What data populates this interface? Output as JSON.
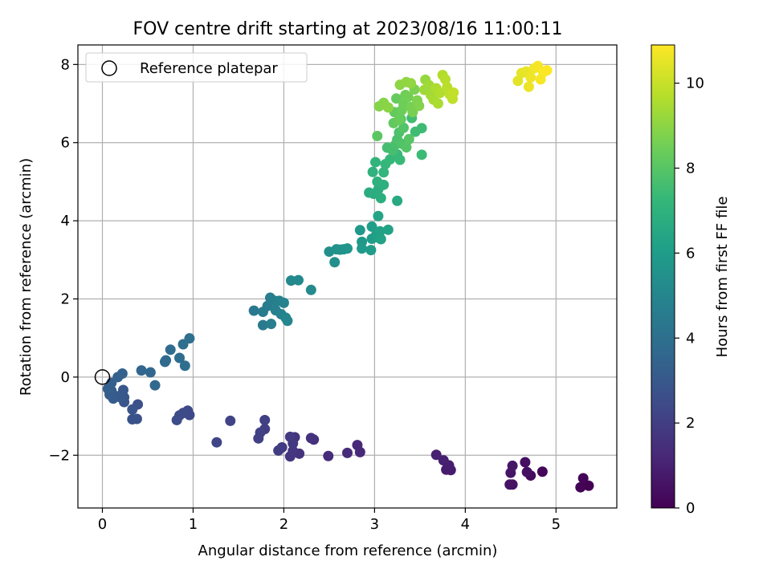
{
  "chart_data": {
    "type": "scatter",
    "title": "FOV centre drift starting at 2023/08/16 11:00:11",
    "xlabel": "Angular distance from reference (arcmin)",
    "ylabel": "Rotation from reference (arcmin)",
    "xlim": [
      -0.27,
      5.67
    ],
    "ylim": [
      -3.35,
      8.5
    ],
    "xticks": [
      0,
      1,
      2,
      3,
      4,
      5
    ],
    "xtick_labels": [
      "0",
      "1",
      "2",
      "3",
      "4",
      "5"
    ],
    "yticks": [
      -2,
      0,
      2,
      4,
      6,
      8
    ],
    "ytick_labels": [
      "−2",
      "0",
      "2",
      "4",
      "6",
      "8"
    ],
    "grid": true,
    "legend": {
      "position": "top-left",
      "entries": [
        "Reference platepar"
      ]
    },
    "reference_point": {
      "x": 0,
      "y": 0,
      "label": "Reference platepar"
    },
    "colorbar": {
      "label": "Hours from first FF file",
      "min": 0,
      "max": 10.9,
      "ticks": [
        0,
        2,
        4,
        6,
        8,
        10
      ],
      "tick_labels": [
        "0",
        "2",
        "4",
        "6",
        "8",
        "10"
      ],
      "colormap": "viridis"
    },
    "points": [
      [
        5.36,
        -2.78,
        0.0
      ],
      [
        5.27,
        -2.82,
        0.05
      ],
      [
        5.3,
        -2.59,
        0.1
      ],
      [
        4.85,
        -2.42,
        0.2
      ],
      [
        4.72,
        -2.52,
        0.3
      ],
      [
        4.66,
        -2.18,
        0.4
      ],
      [
        4.68,
        -2.43,
        0.45
      ],
      [
        4.52,
        -2.75,
        0.5
      ],
      [
        4.49,
        -2.75,
        0.55
      ],
      [
        4.5,
        -2.45,
        0.6
      ],
      [
        4.52,
        -2.27,
        0.65
      ],
      [
        3.84,
        -2.38,
        0.8
      ],
      [
        3.79,
        -2.37,
        0.85
      ],
      [
        3.82,
        -2.26,
        0.9
      ],
      [
        3.76,
        -2.13,
        0.95
      ],
      [
        3.68,
        -1.99,
        1.0
      ],
      [
        2.84,
        -1.92,
        1.2
      ],
      [
        2.81,
        -1.74,
        1.25
      ],
      [
        2.7,
        -1.94,
        1.3
      ],
      [
        2.49,
        -2.02,
        1.35
      ],
      [
        2.33,
        -1.6,
        1.5
      ],
      [
        2.3,
        -1.56,
        1.55
      ],
      [
        2.17,
        -1.96,
        1.6
      ],
      [
        2.12,
        -1.54,
        1.65
      ],
      [
        2.1,
        -1.89,
        1.7
      ],
      [
        2.07,
        -2.03,
        1.75
      ],
      [
        2.1,
        -1.7,
        1.8
      ],
      [
        2.07,
        -1.53,
        1.85
      ],
      [
        1.98,
        -1.8,
        1.9
      ],
      [
        1.94,
        -1.88,
        1.95
      ],
      [
        1.79,
        -1.33,
        2.0
      ],
      [
        1.79,
        -1.1,
        2.05
      ],
      [
        1.74,
        -1.42,
        2.1
      ],
      [
        1.72,
        -1.57,
        2.15
      ],
      [
        1.41,
        -1.12,
        2.2
      ],
      [
        1.26,
        -1.67,
        2.25
      ],
      [
        0.96,
        -0.97,
        2.35
      ],
      [
        0.94,
        -0.86,
        2.4
      ],
      [
        0.89,
        -0.92,
        2.45
      ],
      [
        0.85,
        -0.98,
        2.5
      ],
      [
        0.82,
        -1.1,
        2.55
      ],
      [
        0.39,
        -0.7,
        2.65
      ],
      [
        0.38,
        -1.07,
        2.7
      ],
      [
        0.33,
        -1.08,
        2.75
      ],
      [
        0.33,
        -0.83,
        2.8
      ],
      [
        0.24,
        -0.64,
        2.85
      ],
      [
        0.24,
        -0.52,
        2.9
      ],
      [
        0.23,
        -0.33,
        2.95
      ],
      [
        0.2,
        -0.52,
        3.0
      ],
      [
        0.16,
        -0.49,
        3.05
      ],
      [
        0.12,
        -0.55,
        3.1
      ],
      [
        0.1,
        -0.35,
        3.15
      ],
      [
        0.08,
        -0.45,
        3.2
      ],
      [
        0.06,
        -0.3,
        3.25
      ],
      [
        0.1,
        -0.15,
        3.3
      ],
      [
        0.17,
        0.0,
        3.35
      ],
      [
        0.22,
        0.09,
        3.4
      ],
      [
        0.43,
        0.17,
        3.55
      ],
      [
        0.53,
        0.12,
        3.6
      ],
      [
        0.58,
        -0.21,
        3.65
      ],
      [
        0.69,
        0.39,
        3.7
      ],
      [
        0.7,
        0.43,
        3.75
      ],
      [
        0.75,
        0.7,
        3.8
      ],
      [
        0.85,
        0.49,
        3.85
      ],
      [
        0.91,
        0.29,
        3.9
      ],
      [
        0.89,
        0.84,
        3.95
      ],
      [
        0.96,
        0.99,
        4.0
      ],
      [
        1.67,
        1.7,
        4.4
      ],
      [
        1.77,
        1.33,
        4.45
      ],
      [
        1.77,
        1.67,
        4.5
      ],
      [
        1.82,
        1.82,
        4.55
      ],
      [
        1.85,
        2.03,
        4.6
      ],
      [
        1.86,
        1.36,
        4.65
      ],
      [
        1.9,
        1.95,
        4.7
      ],
      [
        1.91,
        1.71,
        4.75
      ],
      [
        1.95,
        1.95,
        4.8
      ],
      [
        1.97,
        1.61,
        4.85
      ],
      [
        2.0,
        1.9,
        4.9
      ],
      [
        2.02,
        1.52,
        4.95
      ],
      [
        2.04,
        1.44,
        5.0
      ],
      [
        2.08,
        2.47,
        5.1
      ],
      [
        2.16,
        2.48,
        5.15
      ],
      [
        2.3,
        2.23,
        5.2
      ],
      [
        2.5,
        3.21,
        5.4
      ],
      [
        2.56,
        2.94,
        5.45
      ],
      [
        2.58,
        3.27,
        5.5
      ],
      [
        2.62,
        3.26,
        5.55
      ],
      [
        2.66,
        3.27,
        5.6
      ],
      [
        2.7,
        3.29,
        5.65
      ],
      [
        2.84,
        3.76,
        5.8
      ],
      [
        2.86,
        3.46,
        5.85
      ],
      [
        2.86,
        3.29,
        5.9
      ],
      [
        2.96,
        3.25,
        5.95
      ],
      [
        2.97,
        3.54,
        6.0
      ],
      [
        2.97,
        3.85,
        6.05
      ],
      [
        3.02,
        3.65,
        6.1
      ],
      [
        3.04,
        3.57,
        6.15
      ],
      [
        3.06,
        3.73,
        6.2
      ],
      [
        3.07,
        3.53,
        6.25
      ],
      [
        3.15,
        3.77,
        6.3
      ],
      [
        3.04,
        4.12,
        6.35
      ],
      [
        3.25,
        4.51,
        6.6
      ],
      [
        2.94,
        4.72,
        6.7
      ],
      [
        2.99,
        4.69,
        6.75
      ],
      [
        3.04,
        4.8,
        6.8
      ],
      [
        3.07,
        4.58,
        6.85
      ],
      [
        3.1,
        4.92,
        6.9
      ],
      [
        3.03,
        5.0,
        6.95
      ],
      [
        2.98,
        5.25,
        7.0
      ],
      [
        3.01,
        5.5,
        7.05
      ],
      [
        3.1,
        5.24,
        7.15
      ],
      [
        3.12,
        5.45,
        7.2
      ],
      [
        3.17,
        5.57,
        7.25
      ],
      [
        3.25,
        5.7,
        7.3
      ],
      [
        3.28,
        5.56,
        7.35
      ],
      [
        3.52,
        5.69,
        7.4
      ],
      [
        3.52,
        6.37,
        7.45
      ],
      [
        3.45,
        6.28,
        7.5
      ],
      [
        3.41,
        6.63,
        7.55
      ],
      [
        3.14,
        5.87,
        7.6
      ],
      [
        3.2,
        5.8,
        7.65
      ],
      [
        3.23,
        5.95,
        7.7
      ],
      [
        3.25,
        6.08,
        7.75
      ],
      [
        3.27,
        6.26,
        7.8
      ],
      [
        3.3,
        5.97,
        7.85
      ],
      [
        3.32,
        6.38,
        7.9
      ],
      [
        3.35,
        5.88,
        7.95
      ],
      [
        3.38,
        6.09,
        8.0
      ],
      [
        3.29,
        6.6,
        8.05
      ],
      [
        3.03,
        6.17,
        8.1
      ],
      [
        3.21,
        6.5,
        8.2
      ],
      [
        3.22,
        6.78,
        8.25
      ],
      [
        3.24,
        7.13,
        8.3
      ],
      [
        3.27,
        6.58,
        8.35
      ],
      [
        3.3,
        6.83,
        8.4
      ],
      [
        3.32,
        6.99,
        8.45
      ],
      [
        3.34,
        7.22,
        8.5
      ],
      [
        3.37,
        7.17,
        8.55
      ],
      [
        3.4,
        6.91,
        8.6
      ],
      [
        3.42,
        6.78,
        8.65
      ],
      [
        3.44,
        7.36,
        8.7
      ],
      [
        3.47,
        7.08,
        8.75
      ],
      [
        3.49,
        6.94,
        8.8
      ],
      [
        3.05,
        6.93,
        8.85
      ],
      [
        3.1,
        7.02,
        8.9
      ],
      [
        3.15,
        6.9,
        8.95
      ],
      [
        3.28,
        7.48,
        9.0
      ],
      [
        3.35,
        7.55,
        9.05
      ],
      [
        3.4,
        7.52,
        9.1
      ],
      [
        3.56,
        7.61,
        9.15
      ],
      [
        3.55,
        7.35,
        9.3
      ],
      [
        3.6,
        7.47,
        9.35
      ],
      [
        3.62,
        7.22,
        9.4
      ],
      [
        3.65,
        7.1,
        9.45
      ],
      [
        3.7,
        7.0,
        9.5
      ],
      [
        3.68,
        7.39,
        9.55
      ],
      [
        3.72,
        7.27,
        9.6
      ],
      [
        3.75,
        7.73,
        9.65
      ],
      [
        3.78,
        7.62,
        9.7
      ],
      [
        3.8,
        7.42,
        9.75
      ],
      [
        3.83,
        7.23,
        9.8
      ],
      [
        3.86,
        7.12,
        9.85
      ],
      [
        3.87,
        7.28,
        9.9
      ],
      [
        4.58,
        7.58,
        10.45
      ],
      [
        4.62,
        7.78,
        10.5
      ],
      [
        4.67,
        7.82,
        10.55
      ],
      [
        4.7,
        7.43,
        10.6
      ],
      [
        4.72,
        7.67,
        10.65
      ],
      [
        4.76,
        7.9,
        10.7
      ],
      [
        4.8,
        7.96,
        10.75
      ],
      [
        4.83,
        7.62,
        10.8
      ],
      [
        4.86,
        7.8,
        10.85
      ],
      [
        4.9,
        7.85,
        10.9
      ]
    ]
  }
}
